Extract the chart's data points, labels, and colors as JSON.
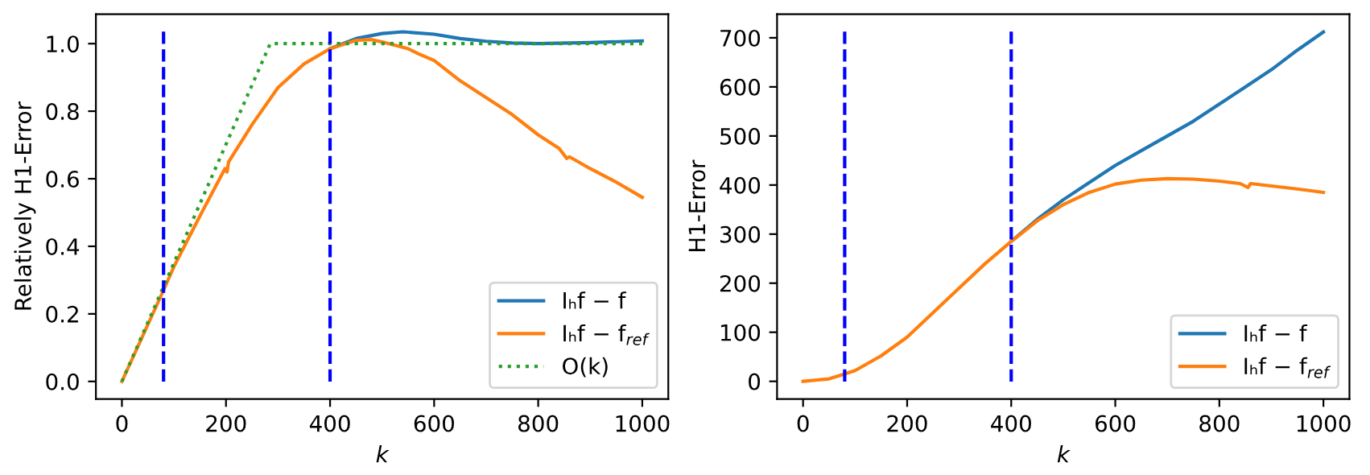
{
  "chart_data": [
    {
      "type": "line",
      "xlabel": "k",
      "ylabel": "Relatively H1-Error",
      "xlim": [
        -50,
        1050
      ],
      "ylim": [
        -0.052,
        1.087
      ],
      "xticks": [
        0,
        200,
        400,
        600,
        800,
        1000
      ],
      "yticks": [
        {
          "value": 0,
          "label": "0.0"
        },
        0.2,
        0.4,
        0.6,
        0.8,
        {
          "value": 1,
          "label": "1.0"
        }
      ],
      "legend": "bottom right",
      "grid": false,
      "series": [
        {
          "name": "Iₕf − f",
          "color": "#1f77b4",
          "line_style": "solid",
          "x": [
            400,
            450,
            500,
            540,
            600,
            650,
            700,
            750,
            800,
            900,
            1000
          ],
          "values": [
            0.985,
            1.015,
            1.03,
            1.035,
            1.028,
            1.015,
            1.007,
            1.002,
            1.0,
            1.003,
            1.008
          ]
        },
        {
          "name": "Iₕf − f$_{ref}$",
          "color": "#ff7f0e",
          "line_style": "solid",
          "x": [
            0,
            80,
            100,
            150,
            198,
            202,
            205,
            250,
            300,
            350,
            400,
            450,
            480,
            500,
            550,
            570,
            600,
            650,
            700,
            750,
            800,
            840,
            855,
            860,
            900,
            950,
            1000
          ],
          "values": [
            0,
            0.27,
            0.34,
            0.49,
            0.63,
            0.62,
            0.65,
            0.76,
            0.87,
            0.94,
            0.985,
            1.01,
            1.012,
            1.005,
            0.985,
            0.97,
            0.95,
            0.89,
            0.84,
            0.79,
            0.73,
            0.69,
            0.66,
            0.665,
            0.63,
            0.59,
            0.545
          ]
        },
        {
          "name": "O(k)",
          "color": "#2ca02c",
          "line_style": "dotted",
          "x": [
            0,
            285,
            1000
          ],
          "values": [
            0,
            1.0,
            1.0
          ]
        }
      ],
      "ref_lines": [
        {
          "axis": "x",
          "value": 80,
          "color": "#0000ff",
          "line_style": "dashed"
        },
        {
          "axis": "x",
          "value": 400,
          "color": "#0000ff",
          "line_style": "dashed"
        }
      ]
    },
    {
      "type": "line",
      "xlabel": "k",
      "ylabel": "H1-Error",
      "xlim": [
        -50,
        1050
      ],
      "ylim": [
        -36,
        748
      ],
      "xticks": [
        0,
        200,
        400,
        600,
        800,
        1000
      ],
      "yticks": [
        0,
        100,
        200,
        300,
        400,
        500,
        600,
        700
      ],
      "legend": "bottom right",
      "grid": false,
      "series": [
        {
          "name": "Iₕf − f",
          "color": "#1f77b4",
          "line_style": "solid",
          "x": [
            400,
            450,
            500,
            550,
            600,
            650,
            700,
            750,
            800,
            850,
            900,
            950,
            1000
          ],
          "values": [
            285,
            330,
            370,
            405,
            440,
            470,
            500,
            530,
            565,
            600,
            635,
            675,
            712
          ]
        },
        {
          "name": "Iₕf − f$_{ref}$",
          "color": "#ff7f0e",
          "line_style": "solid",
          "x": [
            0,
            50,
            80,
            100,
            150,
            200,
            250,
            300,
            350,
            400,
            450,
            500,
            550,
            600,
            650,
            700,
            750,
            800,
            840,
            855,
            860,
            900,
            950,
            1000
          ],
          "values": [
            0,
            5,
            15,
            22,
            52,
            90,
            140,
            190,
            240,
            285,
            327,
            360,
            385,
            402,
            410,
            413,
            412,
            408,
            403,
            395,
            403,
            398,
            392,
            385
          ]
        }
      ],
      "ref_lines": [
        {
          "axis": "x",
          "value": 80,
          "color": "#0000ff",
          "line_style": "dashed"
        },
        {
          "axis": "x",
          "value": 400,
          "color": "#0000ff",
          "line_style": "dashed"
        }
      ]
    }
  ]
}
